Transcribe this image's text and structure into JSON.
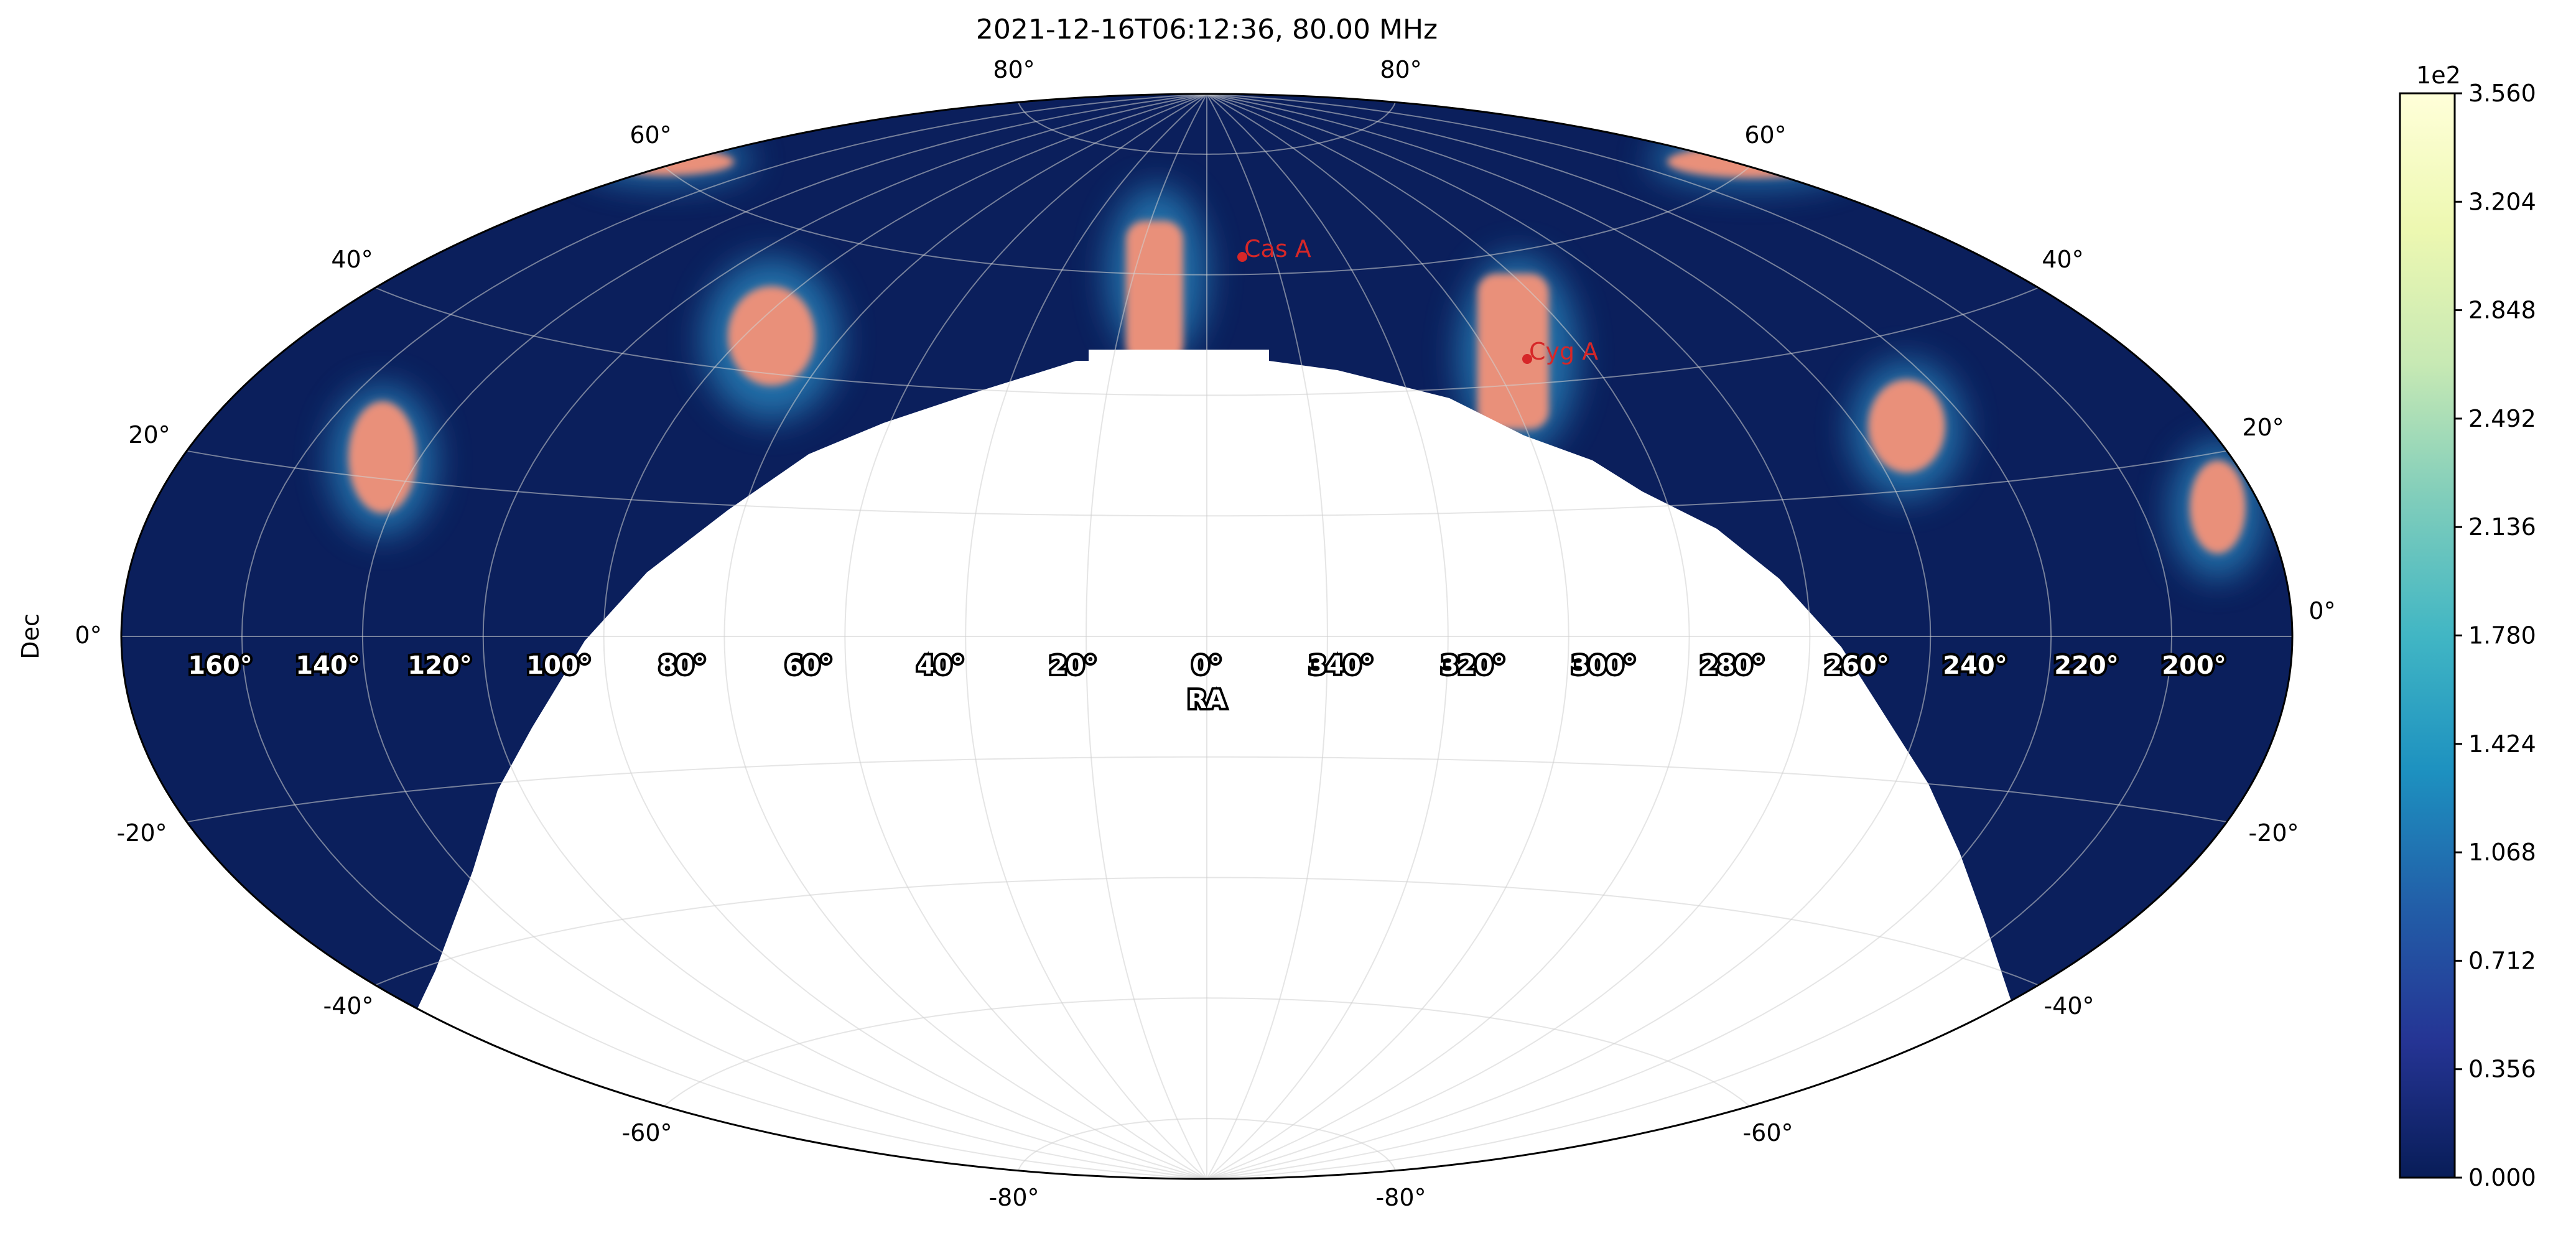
{
  "chart_data": {
    "type": "heatmap",
    "projection": "aitoff",
    "title": "2021-12-16T06:12:36, 80.00 MHz",
    "xlabel": "RA",
    "ylabel": "Dec",
    "ra_tick_labels": [
      "160°",
      "140°",
      "120°",
      "100°",
      "80°",
      "60°",
      "40°",
      "20°",
      "0°",
      "340°",
      "320°",
      "300°",
      "280°",
      "260°",
      "240°",
      "220°",
      "200°"
    ],
    "dec_tick_labels": {
      "left": [
        "80°",
        "60°",
        "40°",
        "20°",
        "0°",
        "-20°",
        "-40°",
        "-60°",
        "-80°"
      ],
      "right": [
        "80°",
        "60°",
        "40°",
        "20°",
        "0°",
        "-20°",
        "-40°",
        "-60°",
        "-80°"
      ]
    },
    "colorbar": {
      "colormap": "YlGnBu",
      "multiplier_label": "1e2",
      "ticks": [
        "0.000",
        "0.356",
        "0.712",
        "1.068",
        "1.424",
        "1.780",
        "2.136",
        "2.492",
        "2.848",
        "3.204",
        "3.560"
      ],
      "range": [
        0.0,
        3.56
      ]
    },
    "sources": [
      {
        "name": "Cas A",
        "ra": 350.9,
        "dec": 58.8
      },
      {
        "name": "Cyg A",
        "ra": 299.9,
        "dec": 40.7
      }
    ],
    "grid": true,
    "background_color": "#0b1f5c",
    "blob_color": "#e9907a",
    "source_color": "#d62728"
  }
}
